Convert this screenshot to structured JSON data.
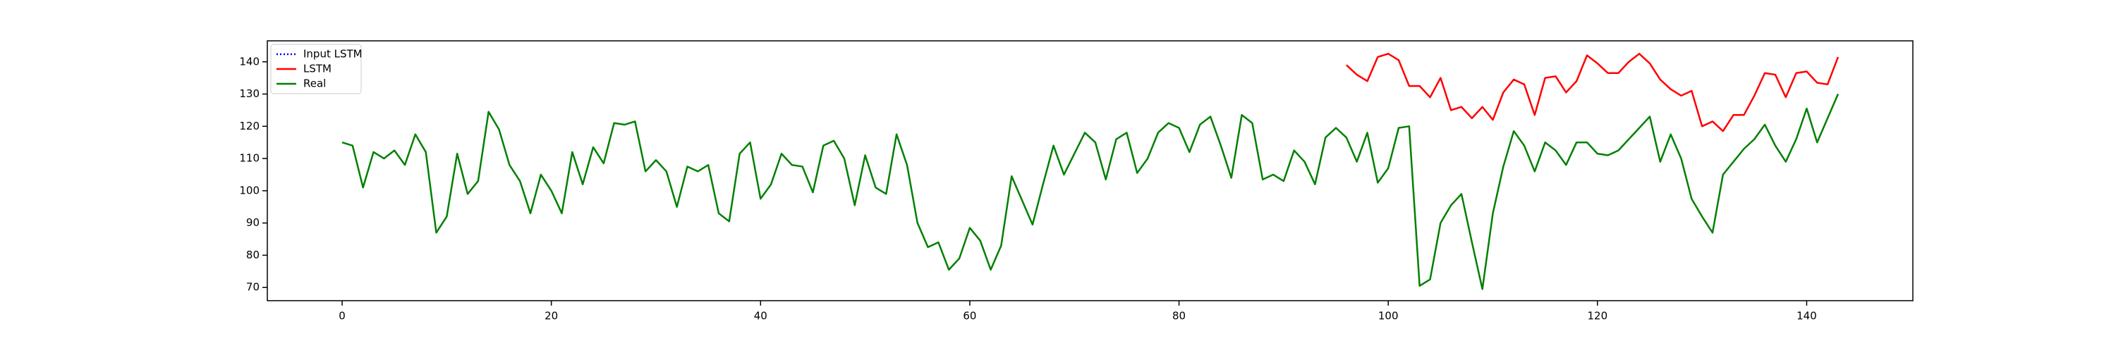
{
  "chart_data": {
    "type": "line",
    "x": [
      0,
      1,
      2,
      3,
      4,
      5,
      6,
      7,
      8,
      9,
      10,
      11,
      12,
      13,
      14,
      15,
      16,
      17,
      18,
      19,
      20,
      21,
      22,
      23,
      24,
      25,
      26,
      27,
      28,
      29,
      30,
      31,
      32,
      33,
      34,
      35,
      36,
      37,
      38,
      39,
      40,
      41,
      42,
      43,
      44,
      45,
      46,
      47,
      48,
      49,
      50,
      51,
      52,
      53,
      54,
      55,
      56,
      57,
      58,
      59,
      60,
      61,
      62,
      63,
      64,
      65,
      66,
      67,
      68,
      69,
      70,
      71,
      72,
      73,
      74,
      75,
      76,
      77,
      78,
      79,
      80,
      81,
      82,
      83,
      84,
      85,
      86,
      87,
      88,
      89,
      90,
      91,
      92,
      93,
      94,
      95,
      96,
      97,
      98,
      99,
      100,
      101,
      102,
      103,
      104,
      105,
      106,
      107,
      108,
      109,
      110,
      111,
      112,
      113,
      114,
      115,
      116,
      117,
      118,
      119,
      120,
      121,
      122,
      123,
      124,
      125,
      126,
      127,
      128,
      129,
      130,
      131,
      132,
      133,
      134,
      135,
      136,
      137,
      138,
      139,
      140,
      141,
      142,
      143
    ],
    "series": [
      {
        "name": "Input LSTM",
        "color": "#0000ff",
        "dash": "dotted",
        "values": [
          null,
          null,
          null,
          null,
          null,
          null,
          null,
          null,
          null,
          null,
          null,
          null,
          null,
          null,
          null,
          null,
          null,
          null,
          null,
          null,
          null,
          null,
          null,
          null,
          null,
          null,
          null,
          null,
          null,
          null,
          null,
          null,
          null,
          null,
          null,
          null,
          null,
          null,
          null,
          null,
          null,
          null,
          null,
          null,
          null,
          null,
          null,
          null,
          null,
          null,
          null,
          null,
          null,
          null,
          null,
          null,
          null,
          null,
          null,
          null,
          null,
          null,
          null,
          null,
          null,
          null,
          null,
          null,
          null,
          null,
          null,
          null,
          null,
          null,
          null,
          null,
          null,
          null,
          null,
          null,
          null,
          null,
          null,
          null,
          null,
          null,
          null,
          null,
          null,
          null,
          null,
          null,
          null,
          null,
          null,
          null,
          null,
          null,
          null,
          null,
          null,
          null,
          null,
          null,
          null,
          null,
          null,
          null,
          null,
          null,
          null,
          null,
          null,
          null,
          null,
          null,
          null,
          null,
          null,
          null,
          null,
          null,
          null,
          null,
          null,
          null,
          null,
          null,
          null,
          null,
          null,
          null,
          null,
          null,
          null,
          null,
          null,
          null,
          null,
          null,
          null,
          null,
          null,
          null
        ]
      },
      {
        "name": "LSTM",
        "color": "#ff0000",
        "dash": "solid",
        "values": [
          null,
          null,
          null,
          null,
          null,
          null,
          null,
          null,
          null,
          null,
          null,
          null,
          null,
          null,
          null,
          null,
          null,
          null,
          null,
          null,
          null,
          null,
          null,
          null,
          null,
          null,
          null,
          null,
          null,
          null,
          null,
          null,
          null,
          null,
          null,
          null,
          null,
          null,
          null,
          null,
          null,
          null,
          null,
          null,
          null,
          null,
          null,
          null,
          null,
          null,
          null,
          null,
          null,
          null,
          null,
          null,
          null,
          null,
          null,
          null,
          null,
          null,
          null,
          null,
          null,
          null,
          null,
          null,
          null,
          null,
          null,
          null,
          null,
          null,
          null,
          null,
          null,
          null,
          null,
          null,
          null,
          null,
          null,
          null,
          null,
          null,
          null,
          null,
          null,
          null,
          null,
          null,
          null,
          null,
          null,
          null,
          139,
          136,
          134,
          141.5,
          142.5,
          140.5,
          132.5,
          132.5,
          129,
          135,
          125,
          126,
          122.5,
          126,
          122,
          130.5,
          134.5,
          133,
          123.5,
          135,
          135.5,
          130.5,
          134,
          142,
          139.5,
          136.5,
          136.5,
          140,
          142.5,
          139.5,
          134.5,
          131.5,
          129.5,
          131,
          120,
          121.5,
          118.5,
          123.5,
          123.5,
          129.5,
          136.5,
          136,
          129,
          136.5,
          137,
          133.5,
          133,
          141.5
        ]
      },
      {
        "name": "Real",
        "color": "#008000",
        "dash": "solid",
        "values": [
          115,
          114,
          101,
          112,
          110,
          112.5,
          108,
          117.5,
          112,
          87,
          92,
          111.5,
          99,
          103,
          124.5,
          119,
          108,
          103,
          93,
          105,
          100,
          93,
          112,
          102,
          113.5,
          108.5,
          121,
          120.5,
          121.5,
          106,
          109.5,
          106,
          95,
          107.5,
          106,
          108,
          93,
          90.5,
          111.5,
          115,
          97.5,
          102,
          111.5,
          108,
          107.5,
          99.5,
          114,
          115.5,
          110,
          95.5,
          111,
          101,
          99,
          117.5,
          108,
          90,
          82.5,
          84,
          75.5,
          79,
          88.5,
          84.5,
          75.5,
          83,
          104.5,
          97,
          89.5,
          102,
          114,
          105,
          111.5,
          118,
          115,
          103.5,
          116,
          118,
          105.5,
          110,
          118,
          121,
          119.5,
          112,
          120.5,
          123,
          114,
          104,
          123.5,
          121,
          103.5,
          105,
          103,
          112.5,
          109,
          102,
          116.5,
          119.5,
          116.5,
          109,
          118,
          102.5,
          107,
          119.5,
          120,
          70.5,
          72.5,
          90,
          95.5,
          99,
          84,
          69.5,
          93,
          107.5,
          118.5,
          114,
          106,
          115,
          112.5,
          108,
          115,
          115,
          111.5,
          111,
          112.5,
          116,
          119.5,
          123,
          109,
          117.5,
          110,
          97.5,
          92,
          87,
          105,
          109,
          113,
          116,
          120.5,
          114,
          109,
          116,
          125.5,
          115,
          122.5,
          130
        ]
      }
    ],
    "xlim": [
      -7.15,
      150.15
    ],
    "ylim": [
      65.9,
      146.5
    ],
    "xticks": [
      0,
      20,
      40,
      60,
      80,
      100,
      120,
      140
    ],
    "yticks": [
      70,
      80,
      90,
      100,
      110,
      120,
      130,
      140
    ],
    "legend": "upper left"
  }
}
